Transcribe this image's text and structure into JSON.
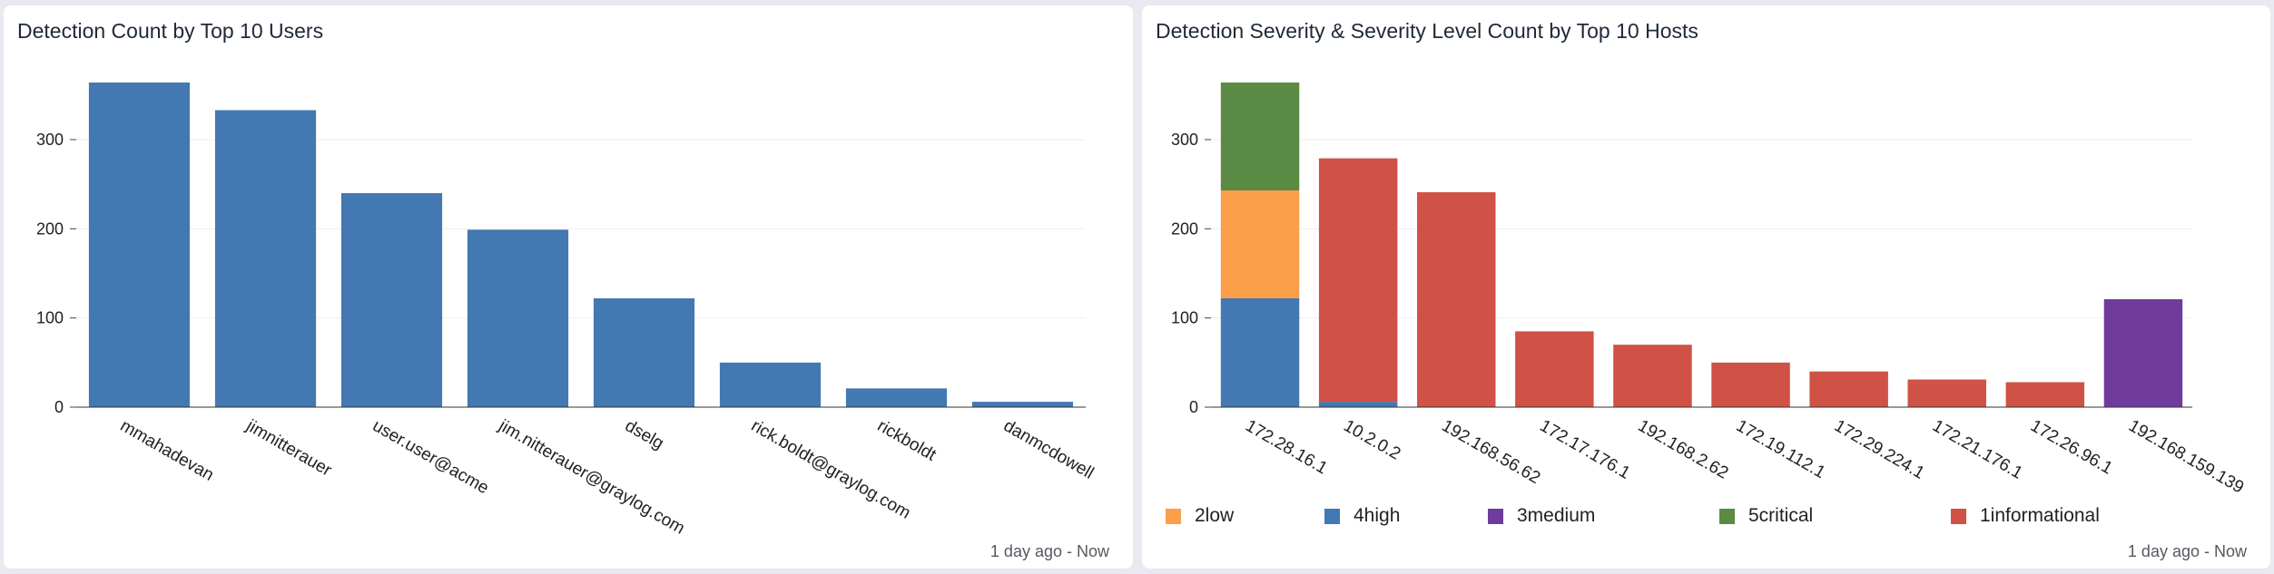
{
  "left_panel": {
    "title": "Detection Count by Top 10 Users",
    "footer": "1 day ago - Now"
  },
  "right_panel": {
    "title": "Detection Severity & Severity Level Count by Top 10 Hosts",
    "footer": "1 day ago - Now"
  },
  "chart_data": [
    {
      "type": "bar",
      "title": "Detection Count by Top 10 Users",
      "categories": [
        "mmahadevan",
        "jimnitterauer",
        "user.user@acme",
        "jim.nitterauer@graylog.com",
        "dselg",
        "rick.boldt@graylog.com",
        "rickboldt",
        "danmcdowell"
      ],
      "values": [
        364,
        333,
        240,
        199,
        122,
        50,
        21,
        6
      ],
      "color": "#4378b2",
      "ylim": [
        0,
        364
      ],
      "yticks": [
        0,
        100,
        200,
        300
      ],
      "grid": true
    },
    {
      "type": "bar",
      "stacked": true,
      "title": "Detection Severity & Severity Level Count by Top 10 Hosts",
      "categories": [
        "172.28.16.1",
        "10.2.0.2",
        "192.168.56.62",
        "172.17.176.1",
        "192.168.2.62",
        "172.19.112.1",
        "172.29.224.1",
        "172.21.176.1",
        "172.26.96.1",
        "192.168.159.139"
      ],
      "series": [
        {
          "name": "4high",
          "color": "#4378b2",
          "values": [
            122,
            6,
            0,
            0,
            0,
            0,
            0,
            0,
            0,
            0
          ]
        },
        {
          "name": "2low",
          "color": "#fb9f4b",
          "values": [
            121,
            0,
            0,
            0,
            0,
            0,
            0,
            0,
            0,
            0
          ]
        },
        {
          "name": "5critical",
          "color": "#5b8a44",
          "values": [
            121,
            0,
            0,
            0,
            0,
            0,
            0,
            0,
            0,
            0
          ]
        },
        {
          "name": "1informational",
          "color": "#d05145",
          "values": [
            0,
            273,
            241,
            85,
            70,
            50,
            40,
            31,
            28,
            0
          ]
        },
        {
          "name": "3medium",
          "color": "#6f3c9e",
          "values": [
            0,
            0,
            0,
            0,
            0,
            0,
            0,
            0,
            0,
            121
          ]
        }
      ],
      "legend": {
        "placement": "bottom",
        "items": [
          {
            "name": "2low",
            "color": "#fb9f4b"
          },
          {
            "name": "4high",
            "color": "#4378b2"
          },
          {
            "name": "3medium",
            "color": "#6f3c9e"
          },
          {
            "name": "5critical",
            "color": "#5b8a44"
          },
          {
            "name": "1informational",
            "color": "#d05145"
          }
        ]
      },
      "ylim": [
        0,
        364
      ],
      "yticks": [
        0,
        100,
        200,
        300
      ],
      "grid": true
    }
  ]
}
